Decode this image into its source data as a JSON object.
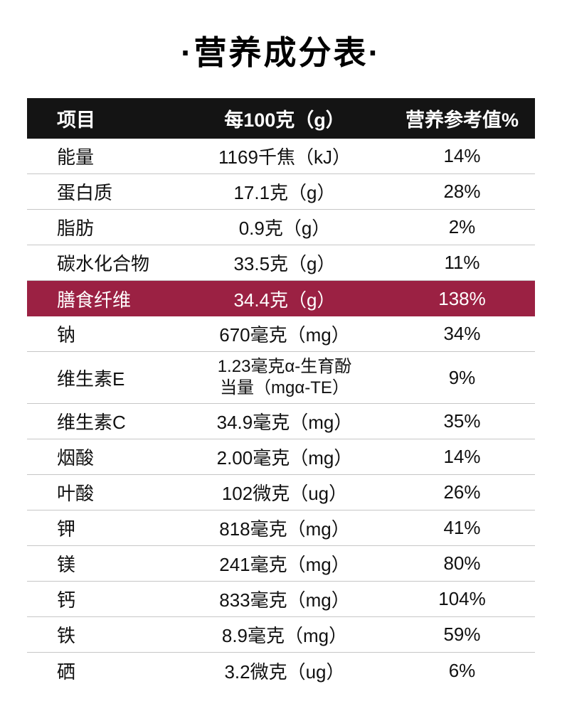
{
  "title": "·营养成分表·",
  "chart_data": {
    "type": "table",
    "title": "营养成分表",
    "columns": [
      "项目",
      "每100克（g）",
      "营养参考值%"
    ],
    "rows": [
      {
        "item": "能量",
        "per_100g": "1169千焦（kJ）",
        "nrv": "14%"
      },
      {
        "item": "蛋白质",
        "per_100g": "17.1克（g）",
        "nrv": "28%"
      },
      {
        "item": "脂肪",
        "per_100g": "0.9克（g）",
        "nrv": "2%"
      },
      {
        "item": "碳水化合物",
        "per_100g": "33.5克（g）",
        "nrv": "11%"
      },
      {
        "item": "膳食纤维",
        "per_100g": "34.4克（g）",
        "nrv": "138%",
        "highlight": true
      },
      {
        "item": "钠",
        "per_100g": "670毫克（mg）",
        "nrv": "34%"
      },
      {
        "item": "维生素E",
        "per_100g": "1.23毫克α-生育酚\n当量（mgα-TE）",
        "nrv": "9%"
      },
      {
        "item": "维生素C",
        "per_100g": "34.9毫克（mg）",
        "nrv": "35%"
      },
      {
        "item": "烟酸",
        "per_100g": "2.00毫克（mg）",
        "nrv": "14%"
      },
      {
        "item": "叶酸",
        "per_100g": "102微克（ug）",
        "nrv": "26%"
      },
      {
        "item": "钾",
        "per_100g": "818毫克（mg）",
        "nrv": "41%"
      },
      {
        "item": "镁",
        "per_100g": "241毫克（mg）",
        "nrv": "80%"
      },
      {
        "item": "钙",
        "per_100g": "833毫克（mg）",
        "nrv": "104%"
      },
      {
        "item": "铁",
        "per_100g": "8.9毫克（mg）",
        "nrv": "59%"
      },
      {
        "item": "硒",
        "per_100g": "3.2微克（ug）",
        "nrv": "6%"
      }
    ]
  },
  "colors": {
    "header_bg": "#141414",
    "header_text": "#ffffff",
    "highlight_bg": "#9b2143",
    "highlight_text": "#ffffff",
    "divider": "#c6c6c6",
    "text": "#111111",
    "footer_strip": "#d9d9d9"
  }
}
